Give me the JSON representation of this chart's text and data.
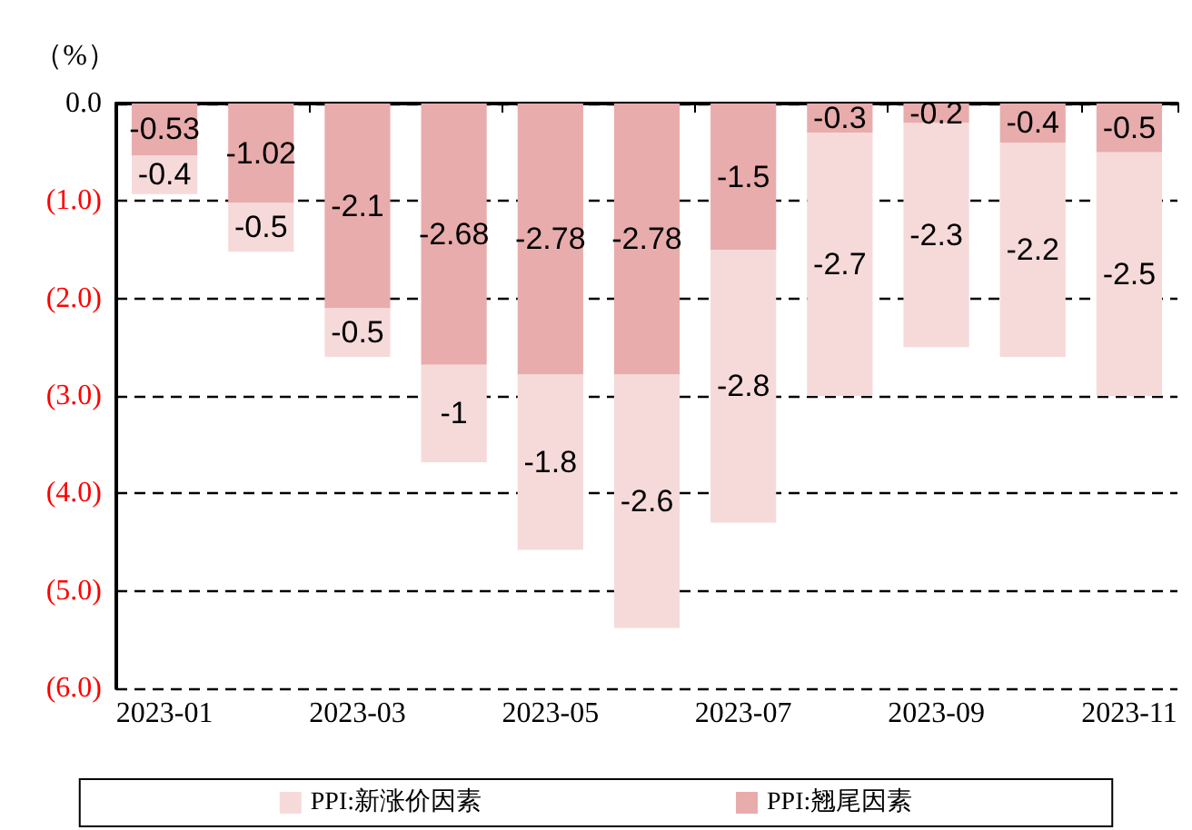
{
  "chart_data": {
    "type": "bar",
    "ylabel": "（%）",
    "stacked": true,
    "data_labels": true,
    "grid": "y",
    "legend": "bottom",
    "categories": [
      "2023-01",
      null,
      "2023-03",
      null,
      "2023-05",
      null,
      "2023-07",
      null,
      "2023-09",
      null,
      "2023-11"
    ],
    "ylim": [
      -6,
      0
    ],
    "yticks": [
      {
        "value": 0,
        "label": "0.0"
      },
      {
        "value": -1,
        "label": "(1.0)"
      },
      {
        "value": -2,
        "label": "(2.0)"
      },
      {
        "value": -3,
        "label": "(3.0)"
      },
      {
        "value": -4,
        "label": "(4.0)"
      },
      {
        "value": -5,
        "label": "(5.0)"
      },
      {
        "value": -6,
        "label": "(6.0)"
      }
    ],
    "series": [
      {
        "name": "PPI:翘尾因素",
        "color": "#e8acac",
        "values": [
          -0.53,
          -1.02,
          -2.1,
          -2.68,
          -2.78,
          -2.78,
          -1.5,
          -0.3,
          -0.2,
          -0.4,
          -0.5
        ]
      },
      {
        "name": "PPI:新涨价因素",
        "color": "#f6dada",
        "values": [
          -0.4,
          -0.5,
          -0.5,
          -1,
          -1.8,
          -2.6,
          -2.8,
          -2.7,
          -2.3,
          -2.2,
          -2.5
        ]
      }
    ]
  }
}
